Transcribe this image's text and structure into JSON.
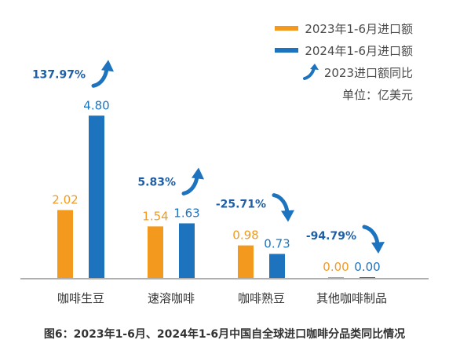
{
  "chart_data": {
    "type": "bar",
    "title": "",
    "caption": "图6：2023年1-6月、2024年1-6月中国自全球进口咖啡分品类同比情况",
    "unit_label": "单位：亿美元",
    "categories": [
      "咖啡生豆",
      "速溶咖啡",
      "咖啡熟豆",
      "其他咖啡制品"
    ],
    "series": [
      {
        "name": "2023年1-6月进口额",
        "color": "#F39A1E",
        "values": [
          2.02,
          1.54,
          0.98,
          0.0
        ]
      },
      {
        "name": "2024年1-6月进口额",
        "color": "#1E73BE",
        "values": [
          4.8,
          1.63,
          0.73,
          0.0
        ]
      }
    ],
    "value_labels": [
      [
        "2.02",
        "1.54",
        "0.98",
        "0.00"
      ],
      [
        "4.80",
        "1.63",
        "0.73",
        "0.00"
      ]
    ],
    "yoy": {
      "name": "2023进口额同比",
      "labels": [
        "137.97%",
        "5.83%",
        "-25.71%",
        "-94.79%"
      ],
      "values": [
        137.97,
        5.83,
        -25.71,
        -94.79
      ]
    },
    "ylim": [
      0,
      5.2
    ],
    "legend_position": "top-right",
    "grid": false,
    "axis_color": "#B0B0B0",
    "label_color": "#333333",
    "yoy_label_color": "#1E5FA8",
    "arrow_color": "#1E73BE"
  }
}
